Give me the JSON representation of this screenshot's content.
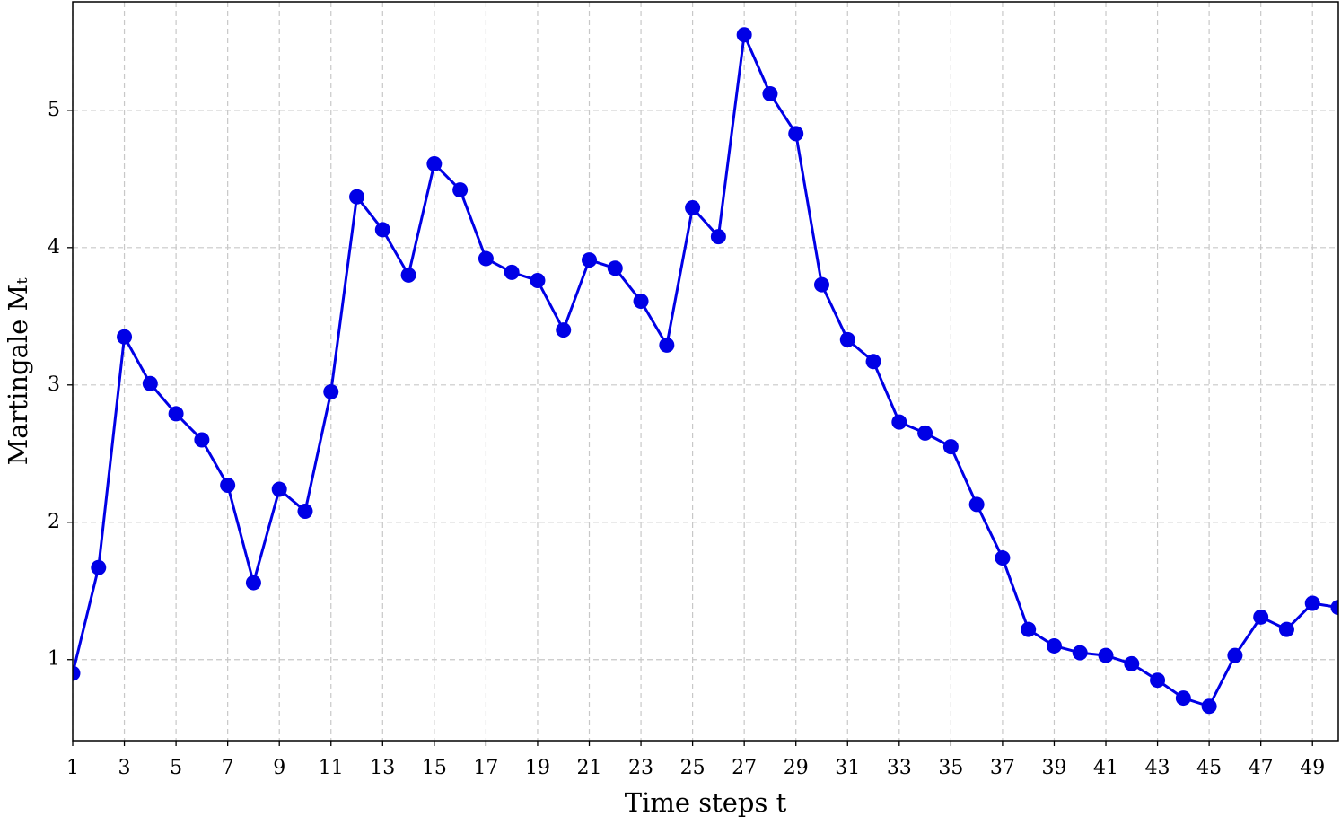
{
  "chart_data": {
    "type": "line",
    "xlabel": "Time steps t",
    "ylabel": "Martingale Mₜ",
    "x": [
      1,
      2,
      3,
      4,
      5,
      6,
      7,
      8,
      9,
      10,
      11,
      12,
      13,
      14,
      15,
      16,
      17,
      18,
      19,
      20,
      21,
      22,
      23,
      24,
      25,
      26,
      27,
      28,
      29,
      30,
      31,
      32,
      33,
      34,
      35,
      36,
      37,
      38,
      39,
      40,
      41,
      42,
      43,
      44,
      45,
      46,
      47,
      48,
      49,
      50
    ],
    "series": [
      {
        "color": "#0000e6",
        "values": [
          0.9,
          1.67,
          3.35,
          3.01,
          2.79,
          2.6,
          2.27,
          1.56,
          2.24,
          2.08,
          2.95,
          4.37,
          4.13,
          3.8,
          4.61,
          4.42,
          3.92,
          3.82,
          3.76,
          3.4,
          3.91,
          3.85,
          3.61,
          3.29,
          4.29,
          4.08,
          5.55,
          5.12,
          4.83,
          3.73,
          3.33,
          3.17,
          2.73,
          2.65,
          2.55,
          2.13,
          1.74,
          1.22,
          1.1,
          1.05,
          1.03,
          0.97,
          0.85,
          0.72,
          0.66,
          1.03,
          1.31,
          1.22,
          1.41,
          1.38
        ]
      }
    ],
    "xlim": [
      1,
      50
    ],
    "xticks": [
      1,
      3,
      5,
      7,
      9,
      11,
      13,
      15,
      17,
      19,
      21,
      23,
      25,
      27,
      29,
      31,
      33,
      35,
      37,
      39,
      41,
      43,
      45,
      47,
      49
    ],
    "ylim": [
      0.41,
      5.79
    ],
    "yticks": [
      1,
      2,
      3,
      4,
      5
    ],
    "grid": true
  }
}
